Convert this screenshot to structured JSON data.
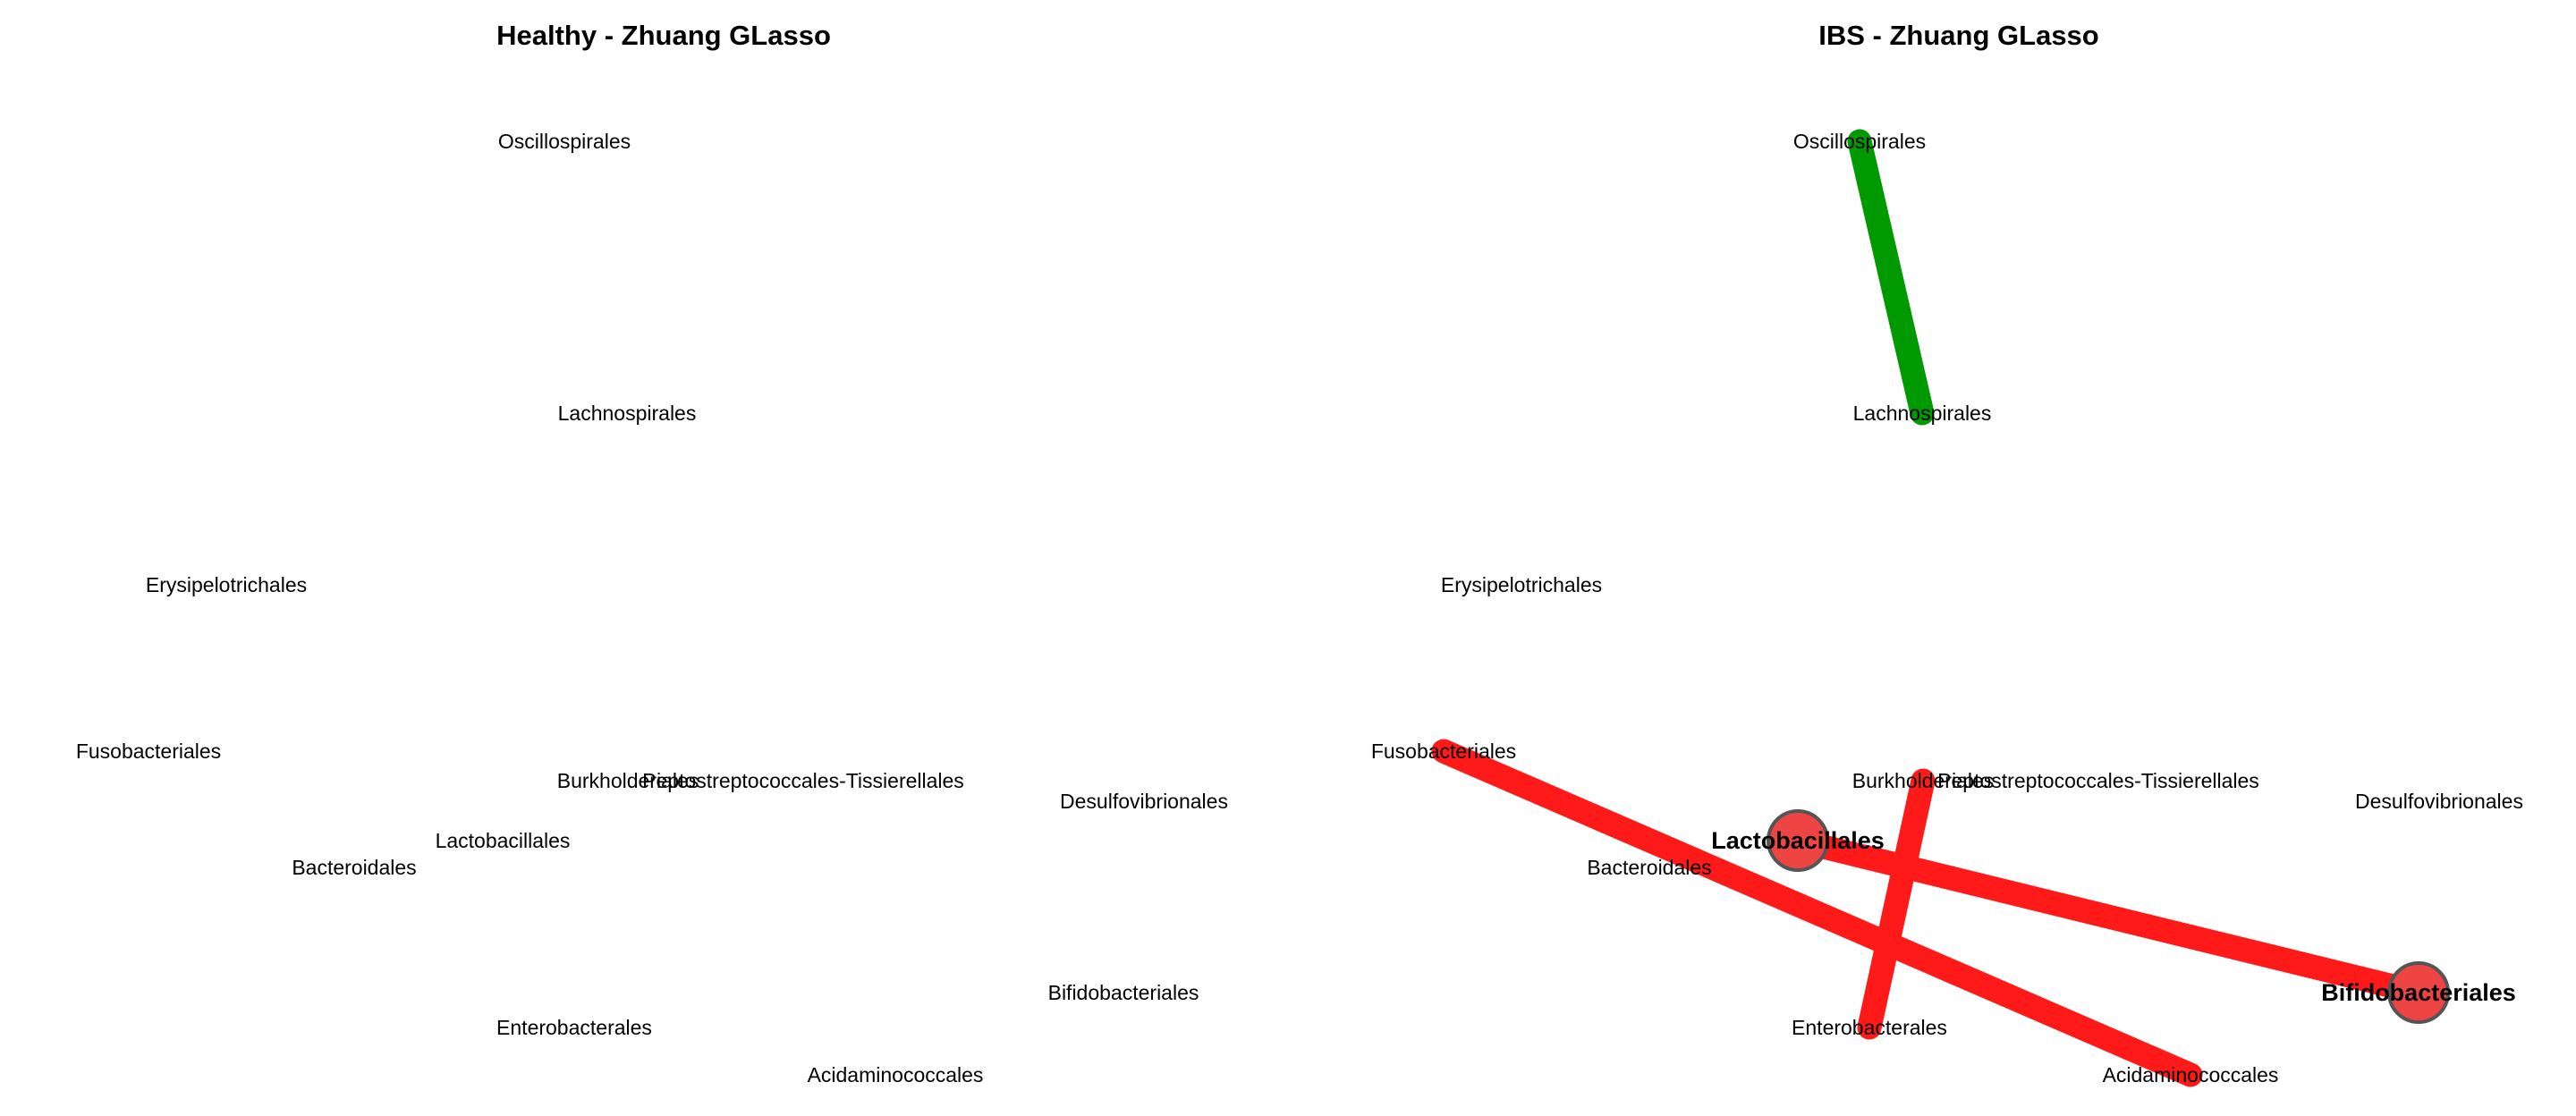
{
  "colors": {
    "positive_edge": "#009900",
    "negative_edge": "#ff1a1a",
    "hub_node_fill": "#ef4444",
    "hub_node_stroke": "#555555"
  },
  "panels": [
    {
      "title": "Healthy - Zhuang GLasso",
      "nodes": [
        {
          "label": "Oscillospirales"
        },
        {
          "label": "Lachnospirales"
        },
        {
          "label": "Erysipelotrichales"
        },
        {
          "label": "Fusobacteriales"
        },
        {
          "label": "Burkholderiales"
        },
        {
          "label": "Peptostreptococcales-Tissierellales"
        },
        {
          "label": "Desulfovibrionales"
        },
        {
          "label": "Lactobacillales"
        },
        {
          "label": "Bacteroidales"
        },
        {
          "label": "Bifidobacteriales"
        },
        {
          "label": "Enterobacterales"
        },
        {
          "label": "Acidaminococcales"
        }
      ],
      "edges": []
    },
    {
      "title": "IBS - Zhuang GLasso",
      "nodes": [
        {
          "label": "Oscillospirales"
        },
        {
          "label": "Lachnospirales"
        },
        {
          "label": "Erysipelotrichales"
        },
        {
          "label": "Fusobacteriales"
        },
        {
          "label": "Burkholderiales"
        },
        {
          "label": "Peptostreptococcales-Tissierellales"
        },
        {
          "label": "Desulfovibrionales"
        },
        {
          "label": "Lactobacillales",
          "hub": true
        },
        {
          "label": "Bacteroidales"
        },
        {
          "label": "Bifidobacteriales",
          "hub": true
        },
        {
          "label": "Enterobacterales"
        },
        {
          "label": "Acidaminococcales"
        }
      ],
      "edges": [
        {
          "source": "Oscillospirales",
          "target": "Lachnospirales",
          "sign": "positive"
        },
        {
          "source": "Fusobacteriales",
          "target": "Acidaminococcales",
          "sign": "negative"
        },
        {
          "source": "Lactobacillales",
          "target": "Bifidobacteriales",
          "sign": "negative"
        },
        {
          "source": "Burkholderiales",
          "target": "Enterobacterales",
          "sign": "negative"
        }
      ]
    }
  ]
}
